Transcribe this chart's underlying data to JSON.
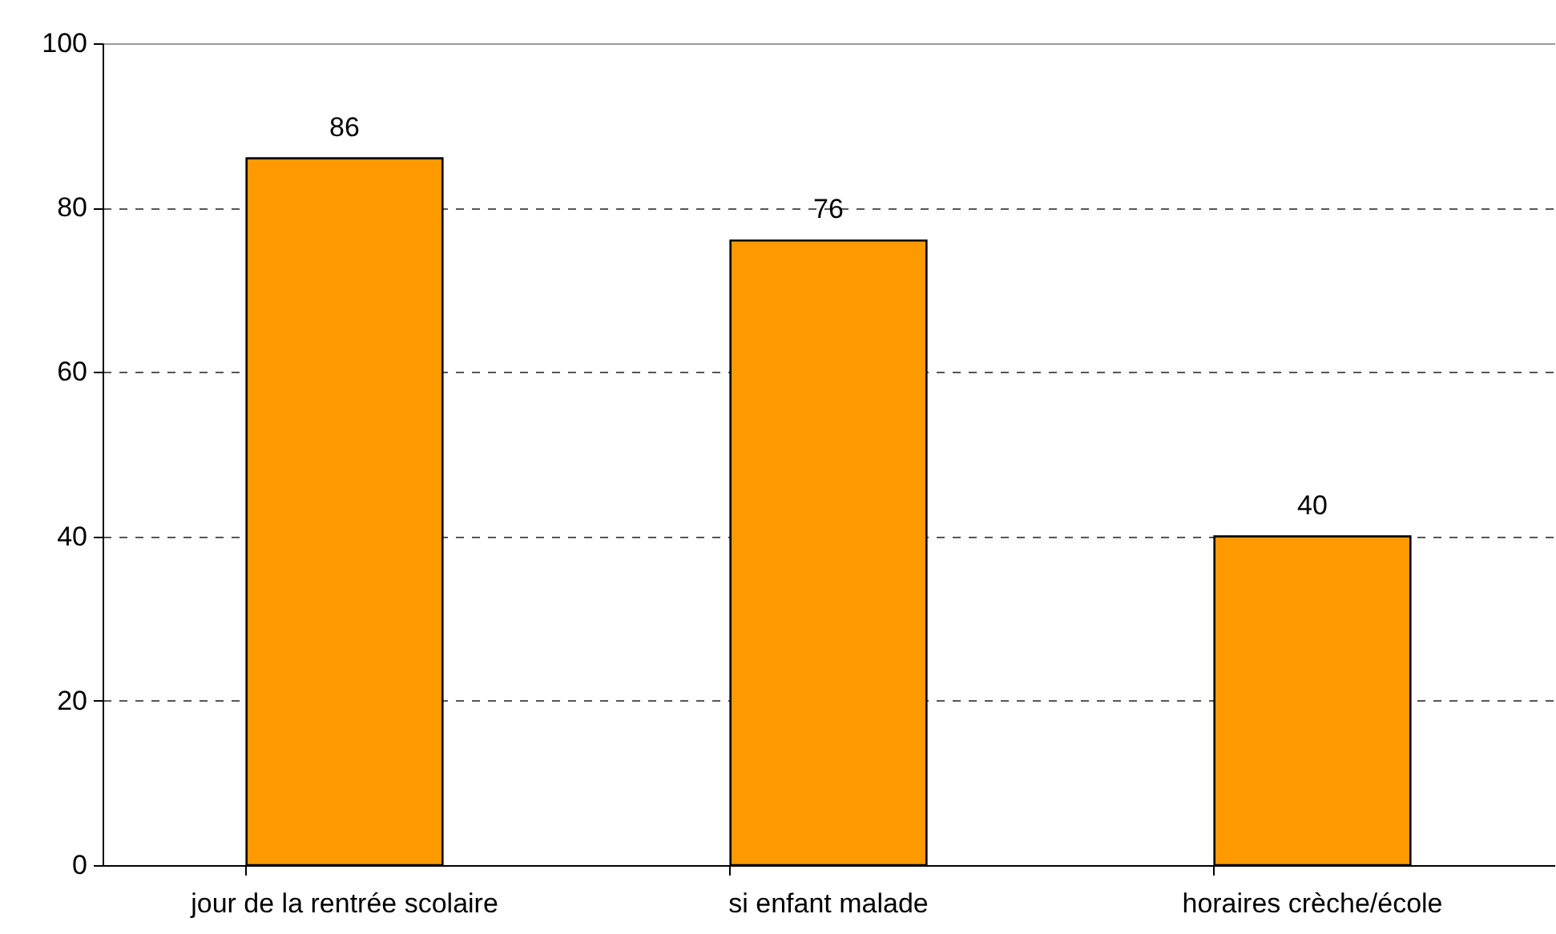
{
  "chart_data": {
    "type": "bar",
    "categories": [
      "jour de la rentrée scolaire",
      "si enfant malade",
      "horaires crèche/école"
    ],
    "values": [
      86,
      76,
      40
    ],
    "color": "#ff9900",
    "ylim": [
      0,
      100
    ],
    "yticks": [
      0,
      20,
      40,
      60,
      80,
      100
    ],
    "grid": "y",
    "data_labels": true
  }
}
